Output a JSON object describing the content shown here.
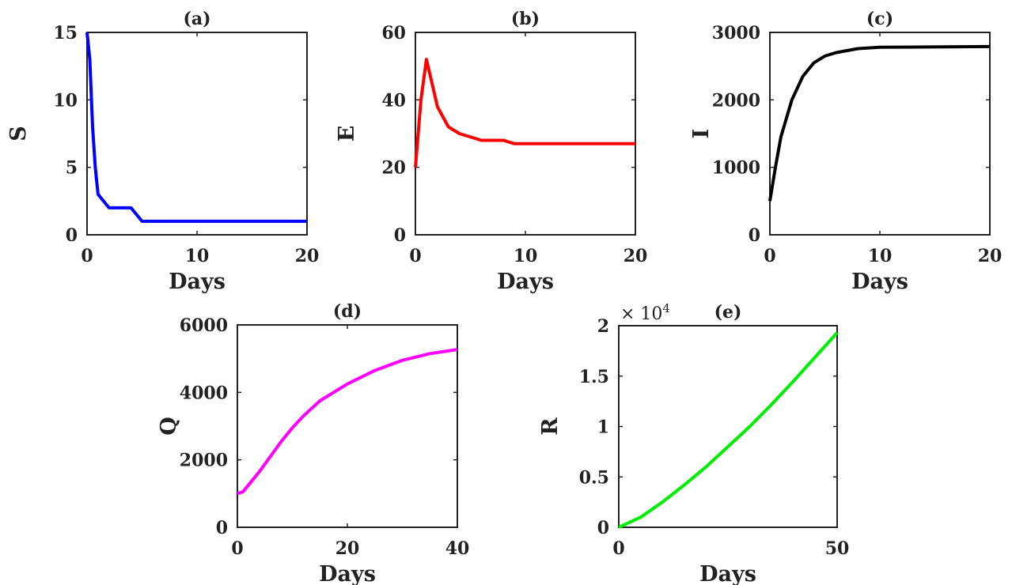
{
  "chart_data": [
    {
      "type": "line",
      "title": "(a)",
      "xlabel": "Days",
      "ylabel": "S",
      "color": "#0000ff",
      "xlim": [
        0,
        20
      ],
      "ylim": [
        0,
        15
      ],
      "xticks": [
        0,
        10,
        20
      ],
      "yticks": [
        0,
        5,
        10,
        15
      ],
      "grid": false,
      "x": [
        0,
        0.25,
        0.5,
        0.75,
        1,
        1.5,
        2,
        4,
        5,
        20
      ],
      "y": [
        15,
        13,
        8,
        5,
        3,
        2.5,
        2,
        2,
        1,
        1
      ]
    },
    {
      "type": "line",
      "title": "(b)",
      "xlabel": "Days",
      "ylabel": "E",
      "color": "#ff0000",
      "xlim": [
        0,
        20
      ],
      "ylim": [
        0,
        60
      ],
      "xticks": [
        0,
        10,
        20
      ],
      "yticks": [
        0,
        20,
        40,
        60
      ],
      "grid": false,
      "x": [
        0,
        0.5,
        1,
        1.5,
        2,
        3,
        4,
        6,
        8,
        9,
        20
      ],
      "y": [
        20,
        40,
        52,
        45,
        38,
        32,
        30,
        28,
        28,
        27,
        27
      ]
    },
    {
      "type": "line",
      "title": "(c)",
      "xlabel": "Days",
      "ylabel": "I",
      "color": "#000000",
      "xlim": [
        0,
        20
      ],
      "ylim": [
        0,
        3000
      ],
      "xticks": [
        0,
        10,
        20
      ],
      "yticks": [
        0,
        1000,
        2000,
        3000
      ],
      "grid": false,
      "x": [
        0,
        0.5,
        1,
        2,
        3,
        4,
        5,
        6,
        8,
        10,
        20
      ],
      "y": [
        500,
        1000,
        1450,
        2000,
        2350,
        2550,
        2650,
        2700,
        2760,
        2780,
        2790
      ]
    },
    {
      "type": "line",
      "title": "(d)",
      "xlabel": "Days",
      "ylabel": "Q",
      "color": "#ff00ff",
      "xlim": [
        0,
        40
      ],
      "ylim": [
        0,
        6000
      ],
      "xticks": [
        0,
        20,
        40
      ],
      "yticks": [
        0,
        2000,
        4000,
        6000
      ],
      "grid": false,
      "x": [
        0,
        1,
        2,
        4,
        6,
        8,
        10,
        12,
        15,
        20,
        25,
        30,
        35,
        40
      ],
      "y": [
        1000,
        1050,
        1250,
        1650,
        2100,
        2550,
        2950,
        3300,
        3750,
        4250,
        4650,
        4950,
        5150,
        5270
      ]
    },
    {
      "type": "line",
      "title": "(e)",
      "xlabel": "Days",
      "ylabel": "R",
      "color": "#00ee00",
      "exponent_label": "× 10",
      "exponent": "4",
      "xlim": [
        0,
        50
      ],
      "ylim": [
        0,
        2
      ],
      "xticks": [
        0,
        50
      ],
      "yticks": [
        0,
        0.5,
        1,
        1.5,
        2
      ],
      "ytick_labels": [
        "0",
        "0.5",
        "1",
        "1.5",
        "2"
      ],
      "grid": false,
      "x": [
        0,
        5,
        10,
        15,
        20,
        25,
        30,
        35,
        40,
        45,
        50
      ],
      "y": [
        0,
        0.1,
        0.25,
        0.42,
        0.6,
        0.8,
        1.0,
        1.22,
        1.45,
        1.69,
        1.93
      ]
    }
  ]
}
